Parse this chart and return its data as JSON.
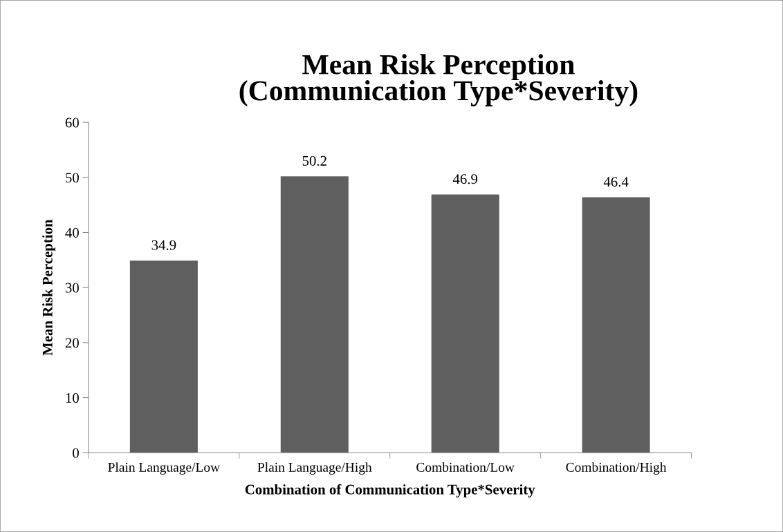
{
  "chart_data": {
    "type": "bar",
    "title": "Mean Risk Perception\n(Communication Type*Severity)",
    "xlabel": "Combination of Communication Type*Severity",
    "ylabel": "Mean Risk Perception",
    "categories": [
      "Plain Language/Low",
      "Plain Language/High",
      "Combination/Low",
      "Combination/High"
    ],
    "values": [
      34.9,
      50.2,
      46.9,
      46.4
    ],
    "color": "#5f5f5f",
    "ylim": [
      0,
      60
    ],
    "yticks": [
      0,
      10,
      20,
      30,
      40,
      50,
      60
    ],
    "grid": false,
    "data_labels": true,
    "legend": false
  }
}
